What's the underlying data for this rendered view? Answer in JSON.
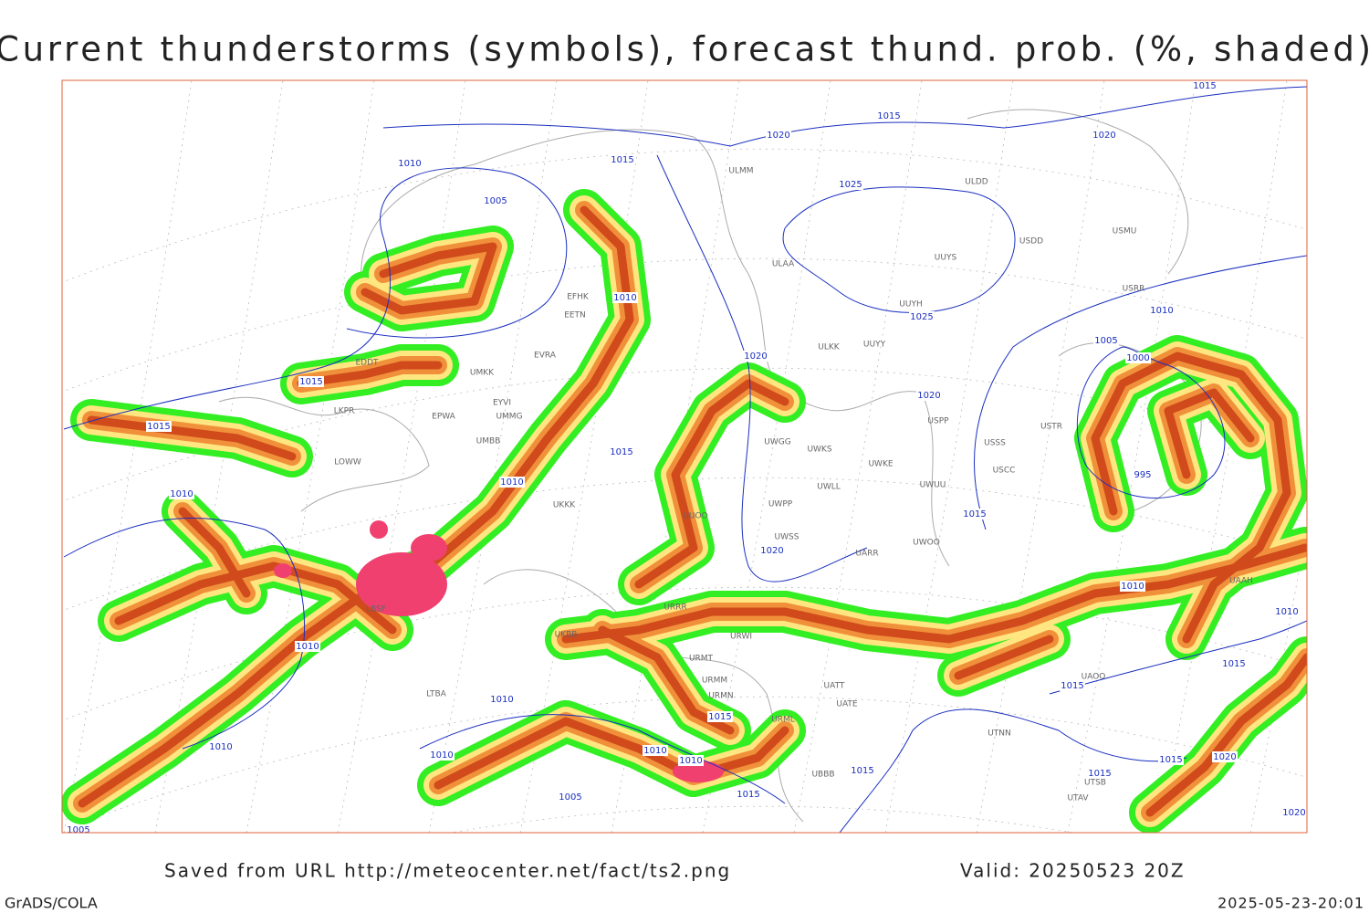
{
  "header": {
    "title": "Current thunderstorms (symbols), forecast thund. prob. (%, shaded)"
  },
  "footer": {
    "source": "Saved from URL http://meteocenter.net/fact/ts2.png",
    "valid": "Valid: 20250523 20Z",
    "software": "GrADS/COLA",
    "timestamp": "2025-05-23-20:01"
  },
  "isobar_labels": [
    1015,
    1015,
    1020,
    1020,
    1015,
    1010,
    1005,
    1025,
    1025,
    1010,
    1020,
    1020,
    1015,
    1015,
    1015,
    1010,
    1010,
    1020,
    1010,
    1010,
    1005,
    1000,
    995,
    1015,
    1010,
    1010,
    1015,
    1015,
    1010,
    1010,
    1010,
    1010,
    1010,
    1015,
    1005,
    1015,
    1015,
    1015,
    1015,
    1020,
    1020,
    1005
  ],
  "stations": [
    "ULMM",
    "ULDD",
    "ULAA",
    "UUYS",
    "USMU",
    "USDD",
    "UUYH",
    "ULKK",
    "UUYY",
    "USRR",
    "EFHK",
    "EETN",
    "EVRA",
    "UMKK",
    "EDDT",
    "EYVI",
    "EPWA",
    "UMMG",
    "LKPR",
    "UMBB",
    "LOWW",
    "UUOO",
    "UWGG",
    "UWKS",
    "UWKE",
    "UWLL",
    "UWPP",
    "UWUU",
    "USSS",
    "USCC",
    "USTR",
    "UWSS",
    "UARR",
    "UWOO",
    "UKKK",
    "UKBB",
    "URRR",
    "URWI",
    "URMT",
    "URMM",
    "URMN",
    "URML",
    "UATE",
    "UATT",
    "UTNN",
    "UBBB",
    "UTAV",
    "UTSB",
    "UAAH",
    "LBSF",
    "LTBA",
    "UAOO",
    "USPP"
  ]
}
